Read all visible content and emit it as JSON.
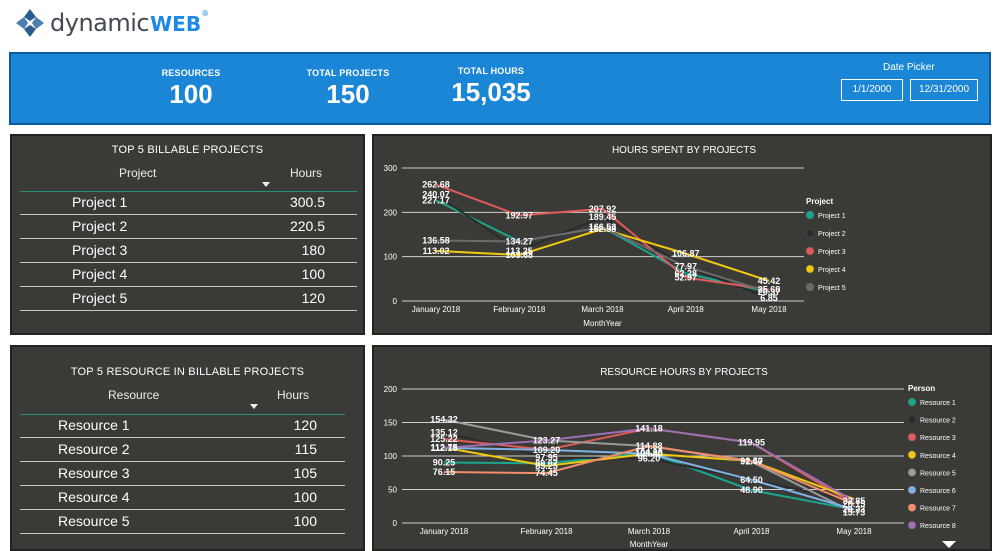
{
  "brand": {
    "logo_prefix": "dynamic",
    "logo_suffix": "WEB",
    "reg_mark": "®"
  },
  "kpis": [
    {
      "label": "RESOURCES",
      "value": "100"
    },
    {
      "label": "TOTAL PROJECTS",
      "value": "150"
    },
    {
      "label": "TOTAL HOURS",
      "value": "15,035"
    }
  ],
  "date_picker": {
    "title": "Date Picker",
    "start": "1/1/2000",
    "end": "12/31/2000"
  },
  "projects_table": {
    "title": "TOP 5 BILLABLE PROJECTS",
    "col1": "Project",
    "col2": "Hours",
    "rows": [
      {
        "name": "Project 1",
        "hours": "300.5"
      },
      {
        "name": "Project 2",
        "hours": "220.5"
      },
      {
        "name": "Project 3",
        "hours": "180"
      },
      {
        "name": "Project 4",
        "hours": "100"
      },
      {
        "name": "Project 5",
        "hours": "120"
      }
    ]
  },
  "resources_table": {
    "title": "TOP 5 RESOURCE IN BILLABLE PROJECTS",
    "col1": "Resource",
    "col2": "Hours",
    "rows": [
      {
        "name": "Resource 1",
        "hours": "120"
      },
      {
        "name": "Resource 2",
        "hours": "115"
      },
      {
        "name": "Resource 3",
        "hours": "105"
      },
      {
        "name": "Resource 4",
        "hours": "100"
      },
      {
        "name": "Resource 5",
        "hours": "100"
      }
    ]
  },
  "chart_data": [
    {
      "type": "line",
      "title": "HOURS SPENT BY PROJECTS",
      "xlabel": "MonthYear",
      "ylabel": "",
      "categories": [
        "January 2018",
        "February 2018",
        "March 2018",
        "April 2018",
        "May 2018"
      ],
      "ylim": [
        0,
        300
      ],
      "yticks": [
        0,
        100,
        200,
        300
      ],
      "legend_title": "Project",
      "series": [
        {
          "name": "Project 1",
          "color": "#1aa58c",
          "values": [
            227.17,
            134.27,
            166.53,
            62.28,
            20.37
          ]
        },
        {
          "name": "Project 2",
          "color": "#2b2b2b",
          "values": [
            240.07,
            113.25,
            189.45,
            77.97,
            6.85
          ]
        },
        {
          "name": "Project 3",
          "color": "#e05a5a",
          "values": [
            262.68,
            192.97,
            207.92,
            52.97,
            25.68
          ]
        },
        {
          "name": "Project 4",
          "color": "#f2c811",
          "values": [
            113.02,
            103.68,
            162.58,
            106.87,
            45.42
          ]
        },
        {
          "name": "Project 5",
          "color": "#6b6b6b",
          "values": [
            136.58,
            134.27,
            166.53,
            77.97,
            20.37
          ]
        }
      ],
      "data_labels": [
        {
          "text": "262.68",
          "x": 0,
          "y": 262.68
        },
        {
          "text": "240.07",
          "x": 0,
          "y": 240.07
        },
        {
          "text": "227.17",
          "x": 0,
          "y": 227.17
        },
        {
          "text": "136.58",
          "x": 0,
          "y": 136.58
        },
        {
          "text": "113.02",
          "x": 0,
          "y": 113.02
        },
        {
          "text": "192.97",
          "x": 1,
          "y": 192.97
        },
        {
          "text": "113.25",
          "x": 1,
          "y": 113.25
        },
        {
          "text": "134.27",
          "x": 1,
          "y": 134.27
        },
        {
          "text": "103.68",
          "x": 1,
          "y": 103.68
        },
        {
          "text": "207.92",
          "x": 2,
          "y": 207.92
        },
        {
          "text": "189.45",
          "x": 2,
          "y": 189.45
        },
        {
          "text": "166.53",
          "x": 2,
          "y": 166.53
        },
        {
          "text": "162.58",
          "x": 2,
          "y": 162.58
        },
        {
          "text": "106.87",
          "x": 3,
          "y": 106.87
        },
        {
          "text": "62.28",
          "x": 3,
          "y": 62.28
        },
        {
          "text": "77.97",
          "x": 3,
          "y": 77.97
        },
        {
          "text": "52.97",
          "x": 3,
          "y": 52.97
        },
        {
          "text": "45.42",
          "x": 4,
          "y": 45.42
        },
        {
          "text": "25.68",
          "x": 4,
          "y": 25.68
        },
        {
          "text": "6.85",
          "x": 4,
          "y": 6.85
        },
        {
          "text": "20.37",
          "x": 4,
          "y": 20.37
        }
      ]
    },
    {
      "type": "line",
      "title": "RESOURCE HOURS BY PROJECTS",
      "xlabel": "MonthYear",
      "ylabel": "",
      "categories": [
        "January 2018",
        "February 2018",
        "March 2018",
        "April 2018",
        "May 2018"
      ],
      "ylim": [
        0,
        200
      ],
      "yticks": [
        0,
        50,
        100,
        150,
        200
      ],
      "legend_title": "Person",
      "series": [
        {
          "name": "Resource 1",
          "color": "#1aa58c",
          "values": [
            90.25,
            89.07,
            104.98,
            48.9,
            20.23
          ]
        },
        {
          "name": "Resource 2",
          "color": "#2b2b2b",
          "values": [
            135.12,
            97.95,
            96.2,
            64.5,
            32.85
          ]
        },
        {
          "name": "Resource 3",
          "color": "#e05a5a",
          "values": [
            125.22,
            109.2,
            141.18,
            119.95,
            28.15
          ]
        },
        {
          "name": "Resource 4",
          "color": "#f2c811",
          "values": [
            112.75,
            85.25,
            103.4,
            92.5,
            35.73
          ]
        },
        {
          "name": "Resource 5",
          "color": "#9a9a9a",
          "values": [
            154.32,
            123.27,
            114.88,
            91.47,
            15.73
          ]
        },
        {
          "name": "Resource 6",
          "color": "#7fb3e6",
          "values": [
            112.18,
            109.2,
            103.4,
            64.5,
            20.23
          ]
        },
        {
          "name": "Resource 7",
          "color": "#f28e6b",
          "values": [
            76.15,
            74.45,
            114.88,
            92.5,
            28.15
          ]
        },
        {
          "name": "Resource 8",
          "color": "#9b6fb0",
          "values": [
            112.18,
            123.27,
            141.18,
            119.95,
            32.85
          ]
        }
      ],
      "data_labels": [
        {
          "text": "154.32",
          "x": 0,
          "y": 154.32
        },
        {
          "text": "135.12",
          "x": 0,
          "y": 135.12
        },
        {
          "text": "112.18",
          "x": 0,
          "y": 112.18
        },
        {
          "text": "125.22",
          "x": 0,
          "y": 125.22
        },
        {
          "text": "112.75",
          "x": 0,
          "y": 112.75
        },
        {
          "text": "90.25",
          "x": 0,
          "y": 90.25
        },
        {
          "text": "76.15",
          "x": 0,
          "y": 76.15
        },
        {
          "text": "123.27",
          "x": 1,
          "y": 123.27
        },
        {
          "text": "109.20",
          "x": 1,
          "y": 109.2
        },
        {
          "text": "97.95",
          "x": 1,
          "y": 97.95
        },
        {
          "text": "85.25",
          "x": 1,
          "y": 85.25
        },
        {
          "text": "89.07",
          "x": 1,
          "y": 89.07
        },
        {
          "text": "74.45",
          "x": 1,
          "y": 74.45
        },
        {
          "text": "141.18",
          "x": 2,
          "y": 141.18
        },
        {
          "text": "114.88",
          "x": 2,
          "y": 114.88
        },
        {
          "text": "103.40",
          "x": 2,
          "y": 103.4
        },
        {
          "text": "104.98",
          "x": 2,
          "y": 104.98
        },
        {
          "text": "96.20",
          "x": 2,
          "y": 96.2
        },
        {
          "text": "119.95",
          "x": 3,
          "y": 119.95
        },
        {
          "text": "92.50",
          "x": 3,
          "y": 92.5
        },
        {
          "text": "91.47",
          "x": 3,
          "y": 91.47
        },
        {
          "text": "64.50",
          "x": 3,
          "y": 64.5
        },
        {
          "text": "48.90",
          "x": 3,
          "y": 48.9
        },
        {
          "text": "28.15",
          "x": 4,
          "y": 28.15
        },
        {
          "text": "15.73",
          "x": 4,
          "y": 15.73
        },
        {
          "text": "32.85",
          "x": 4,
          "y": 32.85
        },
        {
          "text": "20.23",
          "x": 4,
          "y": 20.23
        }
      ]
    }
  ]
}
